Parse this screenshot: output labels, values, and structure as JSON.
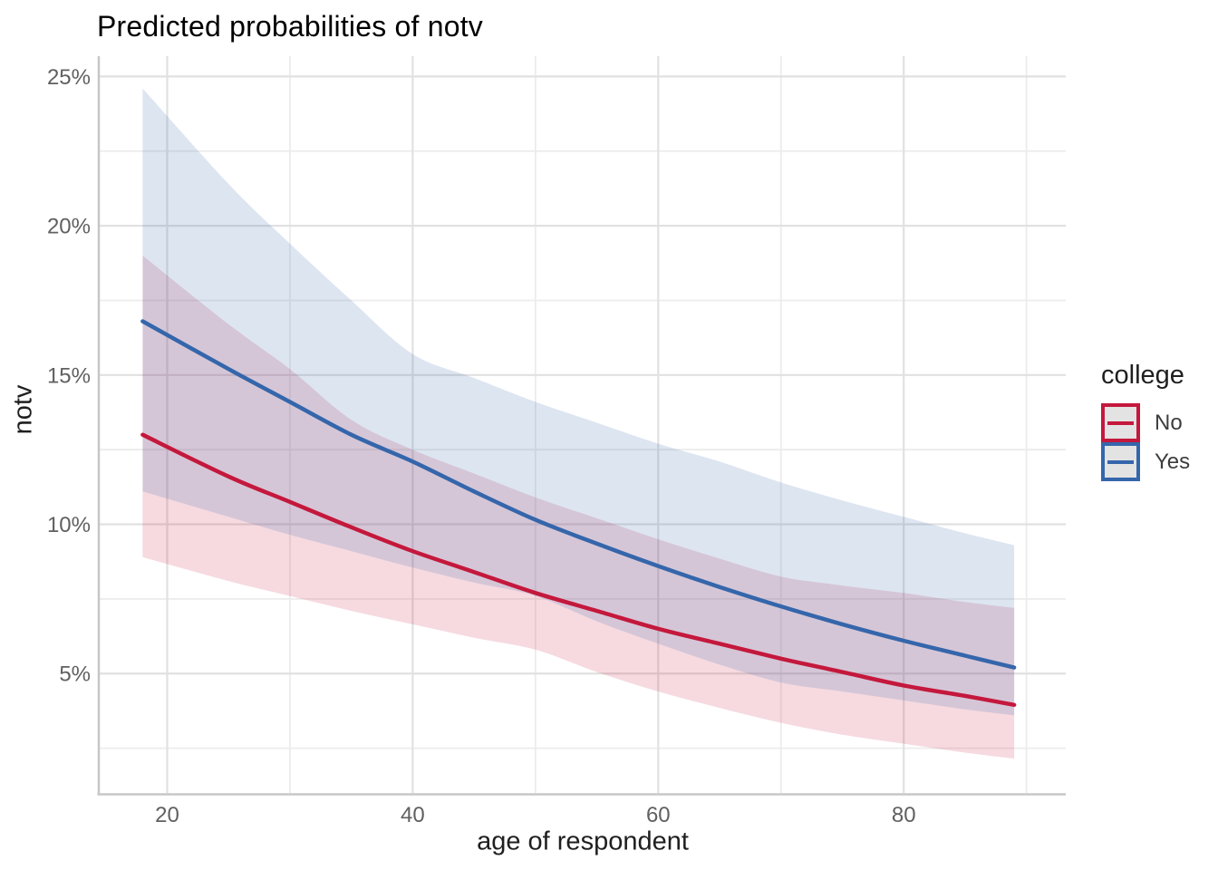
{
  "title": "Predicted probabilities of notv",
  "x_axis": {
    "label": "age of respondent",
    "ticks": [
      {
        "value": 20,
        "label": "20"
      },
      {
        "value": 40,
        "label": "40"
      },
      {
        "value": 60,
        "label": "60"
      },
      {
        "value": 80,
        "label": "80"
      }
    ],
    "minor": [
      30,
      50,
      70,
      90
    ],
    "range": [
      14.5,
      93.2
    ]
  },
  "y_axis": {
    "label": "notv",
    "ticks": [
      {
        "value": 5,
        "label": "5%"
      },
      {
        "value": 10,
        "label": "10%"
      },
      {
        "value": 15,
        "label": "15%"
      },
      {
        "value": 20,
        "label": "20%"
      },
      {
        "value": 25,
        "label": "25%"
      }
    ],
    "minor": [
      2.5,
      7.5,
      12.5,
      17.5,
      22.5
    ],
    "range": [
      1.0,
      25.68
    ]
  },
  "legend": {
    "title": "college",
    "entries": [
      {
        "label": "No",
        "color": "#C4183C"
      },
      {
        "label": "Yes",
        "color": "#3566AB"
      }
    ]
  },
  "colors": {
    "no_line": "#C4183C",
    "yes_line": "#3566AB",
    "grid_major": "#E1E1E1",
    "grid_minor": "#ECECEC",
    "axis_line": "#C7C7C7",
    "tick_text": "#606060",
    "legend_key_fill": "#E3E3E3"
  },
  "chart_data": {
    "type": "line",
    "title": "Predicted probabilities of notv",
    "xlabel": "age of respondent",
    "ylabel": "notv",
    "y_unit": "percent",
    "xlim": [
      14.5,
      93.2
    ],
    "ylim": [
      1.0,
      25.68
    ],
    "grid": true,
    "legend_position": "right",
    "legend_title": "college",
    "x": [
      18,
      25,
      30,
      35,
      40,
      45,
      50,
      55,
      60,
      65,
      70,
      75,
      80,
      85,
      89
    ],
    "series": [
      {
        "name": "No",
        "color": "#C4183C",
        "ribbon_alpha": 0.16,
        "values": [
          13.0,
          11.6,
          10.75,
          9.9,
          9.1,
          8.4,
          7.7,
          7.1,
          6.5,
          6.0,
          5.5,
          5.05,
          4.6,
          4.25,
          3.95
        ],
        "ci_low": [
          8.9,
          8.1,
          7.6,
          7.1,
          6.65,
          6.2,
          5.8,
          5.05,
          4.4,
          3.85,
          3.35,
          2.95,
          2.65,
          2.35,
          2.15
        ],
        "ci_high": [
          19.0,
          16.7,
          15.2,
          13.5,
          12.5,
          11.7,
          10.9,
          10.2,
          9.5,
          8.85,
          8.25,
          7.95,
          7.7,
          7.4,
          7.2
        ]
      },
      {
        "name": "Yes",
        "color": "#3566AB",
        "ribbon_alpha": 0.17,
        "values": [
          16.8,
          15.2,
          14.1,
          13.0,
          12.1,
          11.1,
          10.15,
          9.35,
          8.6,
          7.9,
          7.25,
          6.65,
          6.1,
          5.6,
          5.2
        ],
        "ci_low": [
          11.1,
          10.25,
          9.65,
          9.1,
          8.55,
          8.05,
          7.6,
          6.75,
          6.0,
          5.3,
          4.7,
          4.4,
          4.1,
          3.8,
          3.6
        ],
        "ci_high": [
          24.6,
          21.4,
          19.4,
          17.5,
          15.7,
          14.9,
          14.1,
          13.4,
          12.7,
          12.1,
          11.4,
          10.8,
          10.25,
          9.7,
          9.3
        ]
      }
    ]
  }
}
